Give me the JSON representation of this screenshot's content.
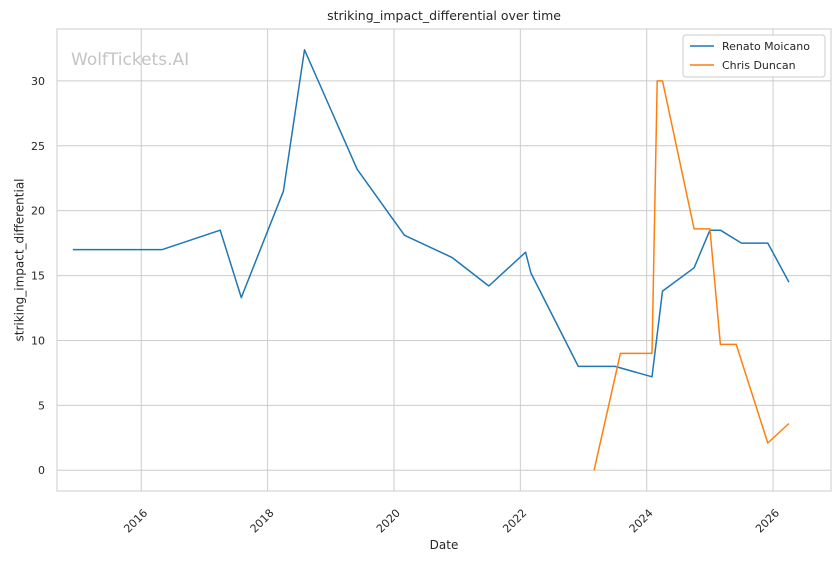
{
  "chart_data": {
    "type": "line",
    "title": "striking_impact_differential over time",
    "xlabel": "Date",
    "ylabel": "striking_impact_differential",
    "xlim": [
      "2014-09-01",
      "2026-12-01"
    ],
    "ylim": [
      -1.6,
      34.0
    ],
    "x_ticks": [
      "2016",
      "2018",
      "2020",
      "2022",
      "2024",
      "2026"
    ],
    "y_ticks": [
      0,
      5,
      10,
      15,
      20,
      25,
      30
    ],
    "grid": true,
    "legend_position": "top-right",
    "watermark": "WolfTickets.AI",
    "series": [
      {
        "name": "Renato Moicano",
        "color": "#1f77b4",
        "points": [
          {
            "x": "2014-12-01",
            "y": 17.0
          },
          {
            "x": "2016-05-01",
            "y": 17.0
          },
          {
            "x": "2017-04-01",
            "y": 18.5
          },
          {
            "x": "2017-08-01",
            "y": 13.3
          },
          {
            "x": "2018-04-01",
            "y": 21.5
          },
          {
            "x": "2018-08-01",
            "y": 32.4
          },
          {
            "x": "2019-01-01",
            "y": 27.8
          },
          {
            "x": "2019-06-01",
            "y": 23.2
          },
          {
            "x": "2020-03-01",
            "y": 18.1
          },
          {
            "x": "2020-12-01",
            "y": 16.4
          },
          {
            "x": "2021-07-01",
            "y": 14.2
          },
          {
            "x": "2022-02-01",
            "y": 16.8
          },
          {
            "x": "2022-03-01",
            "y": 15.2
          },
          {
            "x": "2022-12-01",
            "y": 8.0
          },
          {
            "x": "2023-07-01",
            "y": 8.0
          },
          {
            "x": "2024-02-01",
            "y": 7.2
          },
          {
            "x": "2024-04-01",
            "y": 13.8
          },
          {
            "x": "2024-10-01",
            "y": 15.6
          },
          {
            "x": "2025-01-01",
            "y": 18.5
          },
          {
            "x": "2025-03-01",
            "y": 18.5
          },
          {
            "x": "2025-07-01",
            "y": 17.5
          },
          {
            "x": "2025-12-01",
            "y": 17.5
          },
          {
            "x": "2026-04-01",
            "y": 14.5
          }
        ]
      },
      {
        "name": "Chris Duncan",
        "color": "#ff7f0e",
        "points": [
          {
            "x": "2023-03-01",
            "y": 0.0
          },
          {
            "x": "2023-08-01",
            "y": 9.0
          },
          {
            "x": "2024-02-01",
            "y": 9.0
          },
          {
            "x": "2024-03-01",
            "y": 30.0
          },
          {
            "x": "2024-04-01",
            "y": 30.0
          },
          {
            "x": "2024-10-01",
            "y": 18.6
          },
          {
            "x": "2025-01-01",
            "y": 18.6
          },
          {
            "x": "2025-03-01",
            "y": 9.7
          },
          {
            "x": "2025-06-01",
            "y": 9.7
          },
          {
            "x": "2025-12-01",
            "y": 2.1
          },
          {
            "x": "2026-04-01",
            "y": 3.6
          }
        ]
      }
    ]
  }
}
